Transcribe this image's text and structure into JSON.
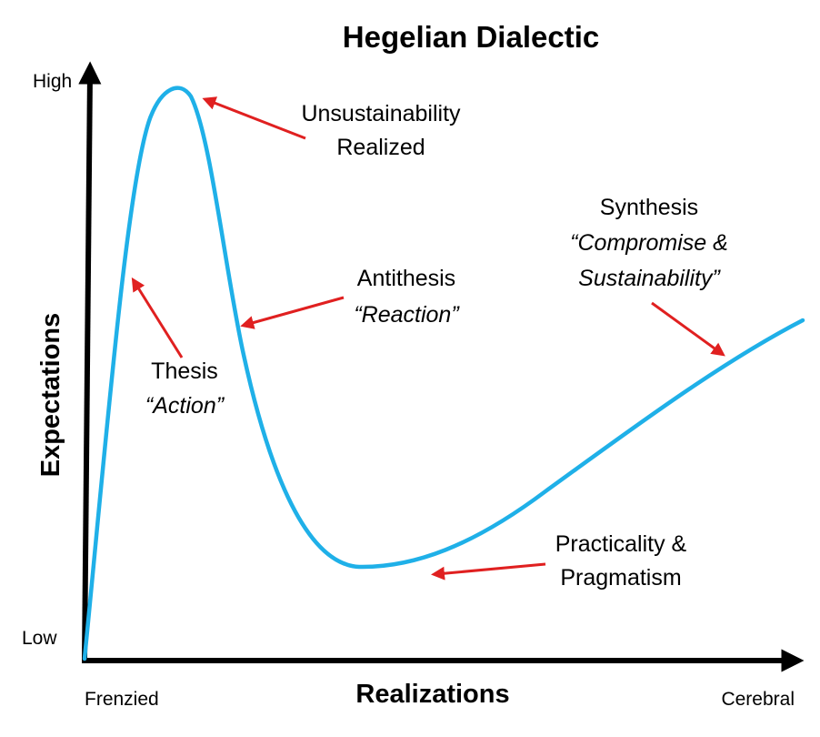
{
  "title": "Hegelian Dialectic",
  "y_axis": {
    "title": "Expectations",
    "high": "High",
    "low": "Low"
  },
  "x_axis": {
    "title": "Realizations",
    "left": "Frenzied",
    "right": "Cerebral"
  },
  "annotations": {
    "peak": {
      "line1": "Unsustainability",
      "line2": "Realized"
    },
    "thesis": {
      "line1": "Thesis",
      "line2": "“Action”"
    },
    "antithesis": {
      "line1": "Antithesis",
      "line2": "“Reaction”"
    },
    "trough": {
      "line1": "Practicality &",
      "line2": "Pragmatism"
    },
    "synthesis": {
      "line1": "Synthesis",
      "line2": "“Compromise &",
      "line3": "Sustainability”"
    }
  },
  "colors": {
    "curve": "#1fb0e8",
    "arrow": "#e02020",
    "axis": "#000000"
  }
}
